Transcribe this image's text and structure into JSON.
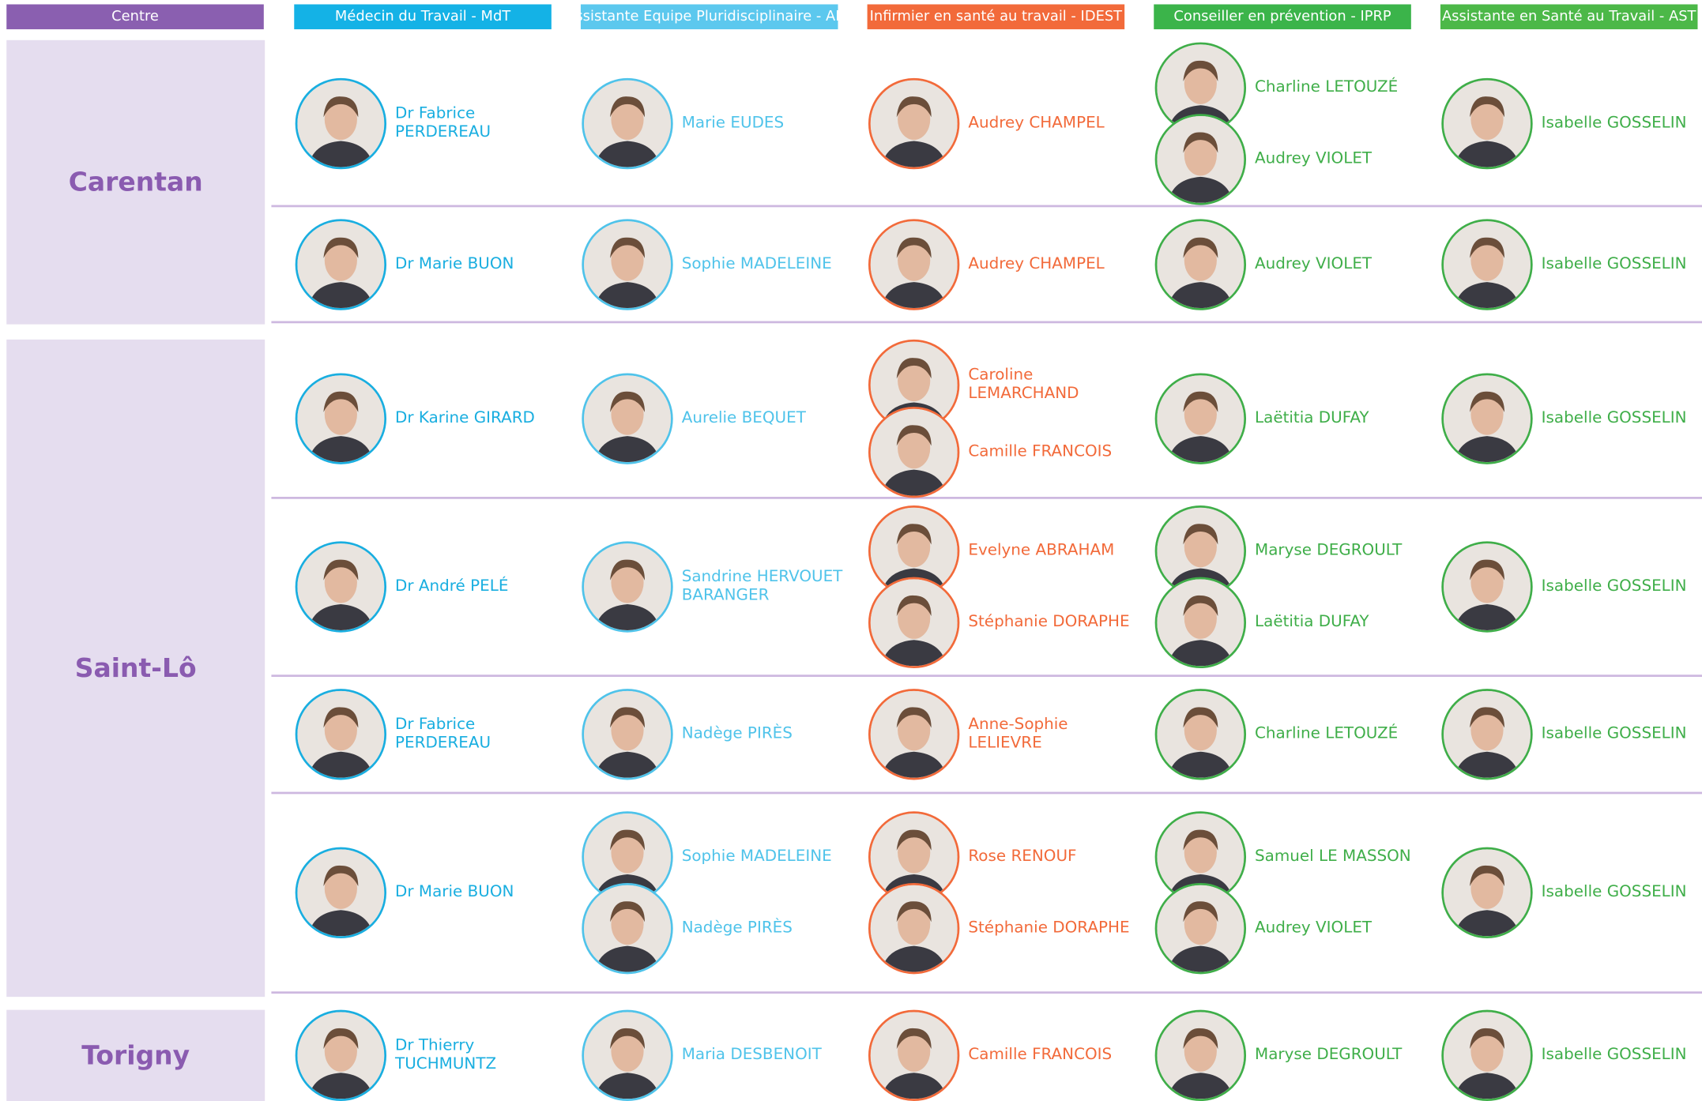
{
  "headers": [
    "Centre",
    "Médecin du Travail - MdT",
    "Assistante Equipe Pluridisciplinaire - AEP",
    "Infirmier en santé au travail - IDEST",
    "Conseiller en prévention - IPRP",
    "Assistante en Santé au Travail - AST"
  ],
  "centres": [
    {
      "name": "Carentan",
      "rows": [
        [
          [
            "Dr Fabrice PERDEREAU"
          ],
          [
            "Marie EUDES"
          ],
          [
            "Audrey CHAMPEL"
          ],
          [
            "Charline LETOUZÉ",
            "Audrey VIOLET"
          ],
          [
            "Isabelle GOSSELIN"
          ]
        ],
        [
          [
            "Dr Marie BUON"
          ],
          [
            "Sophie MADELEINE"
          ],
          [
            "Audrey CHAMPEL"
          ],
          [
            "Audrey VIOLET"
          ],
          [
            "Isabelle GOSSELIN"
          ]
        ]
      ]
    },
    {
      "name": "Saint-Lô",
      "rows": [
        [
          [
            "Dr Karine GIRARD"
          ],
          [
            "Aurelie BEQUET"
          ],
          [
            "Caroline LEMARCHAND",
            "Camille FRANCOIS"
          ],
          [
            "Laëtitia DUFAY"
          ],
          [
            "Isabelle GOSSELIN"
          ]
        ],
        [
          [
            "Dr André PELÉ"
          ],
          [
            "Sandrine HERVOUET BARANGER"
          ],
          [
            "Evelyne ABRAHAM",
            "Stéphanie DORAPHE"
          ],
          [
            "Maryse DEGROULT",
            "Laëtitia DUFAY"
          ],
          [
            "Isabelle GOSSELIN"
          ]
        ],
        [
          [
            "Dr Fabrice PERDEREAU"
          ],
          [
            "Nadège PIRÈS"
          ],
          [
            "Anne-Sophie LELIEVRE"
          ],
          [
            "Charline LETOUZÉ"
          ],
          [
            "Isabelle GOSSELIN"
          ]
        ],
        [
          [
            "Dr Marie BUON"
          ],
          [
            "Sophie MADELEINE",
            "Nadège PIRÈS"
          ],
          [
            "Rose RENOUF",
            "Stéphanie DORAPHE"
          ],
          [
            "Samuel LE MASSON",
            "Audrey VIOLET"
          ],
          [
            "Isabelle GOSSELIN"
          ]
        ]
      ]
    },
    {
      "name": "Torigny",
      "rows": [
        [
          [
            "Dr Thierry TUCHMUNTZ"
          ],
          [
            "Maria DESBENOIT"
          ],
          [
            "Camille FRANCOIS"
          ],
          [
            "Maryse DEGROULT"
          ],
          [
            "Isabelle GOSSELIN"
          ]
        ]
      ]
    }
  ]
}
